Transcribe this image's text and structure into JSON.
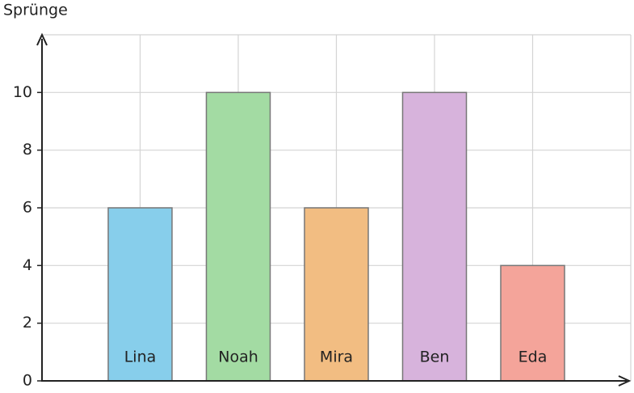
{
  "chart_data": {
    "type": "bar",
    "ylabel": "Sprünge",
    "categories": [
      "Lina",
      "Noah",
      "Mira",
      "Ben",
      "Eda"
    ],
    "values": [
      6,
      10,
      6,
      10,
      4
    ],
    "colors": [
      "#87ceeb",
      "#a3dba3",
      "#f2bd82",
      "#d7b3dc",
      "#f4a49a"
    ],
    "ylim": [
      0,
      12
    ],
    "yticks": [
      0,
      2,
      4,
      6,
      8,
      10
    ],
    "grid": true
  }
}
